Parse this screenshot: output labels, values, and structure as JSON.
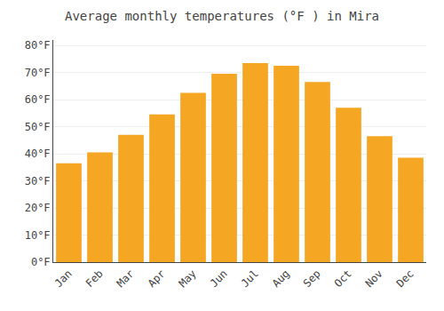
{
  "chart_data": {
    "type": "bar",
    "title": "Average monthly temperatures (°F ) in Mira",
    "categories": [
      "Jan",
      "Feb",
      "Mar",
      "Apr",
      "May",
      "Jun",
      "Jul",
      "Aug",
      "Sep",
      "Oct",
      "Nov",
      "Dec"
    ],
    "values": [
      36.5,
      40.5,
      47.0,
      54.5,
      62.5,
      69.5,
      73.5,
      72.5,
      66.5,
      57.0,
      46.5,
      38.5
    ],
    "color": "#F5A623",
    "ylim": [
      0,
      82
    ],
    "yticks": [
      {
        "value": 0,
        "label": "0°F"
      },
      {
        "value": 10,
        "label": "10°F"
      },
      {
        "value": 20,
        "label": "20°F"
      },
      {
        "value": 30,
        "label": "30°F"
      },
      {
        "value": 40,
        "label": "40°F"
      },
      {
        "value": 50,
        "label": "50°F"
      },
      {
        "value": 60,
        "label": "60°F"
      },
      {
        "value": 70,
        "label": "70°F"
      },
      {
        "value": 80,
        "label": "80°F"
      }
    ],
    "grid": true
  }
}
